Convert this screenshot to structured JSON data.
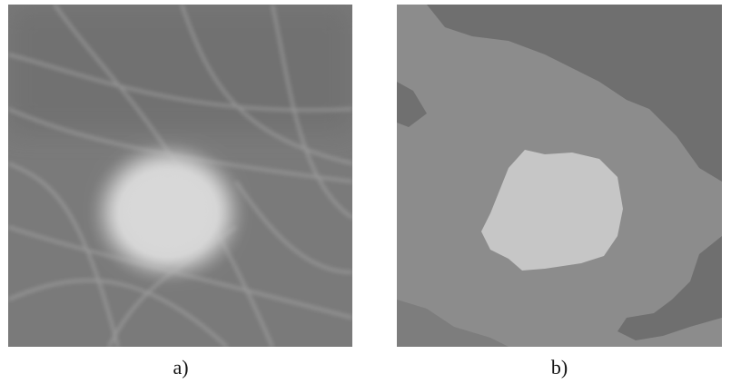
{
  "panels": [
    {
      "caption": "a)"
    },
    {
      "caption": "b)"
    }
  ]
}
